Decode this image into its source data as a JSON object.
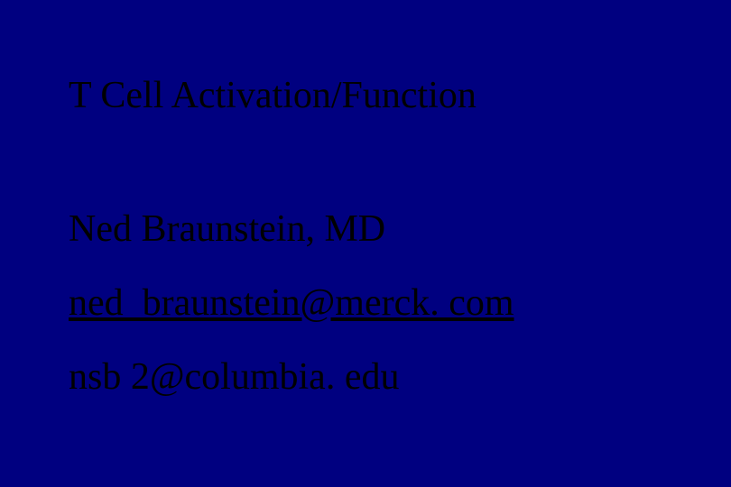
{
  "slide": {
    "background_color": "#000080",
    "text_color": "#000000",
    "font_family": "Times New Roman",
    "title": {
      "text": "T Cell Activation/Function",
      "fontsize": 42
    },
    "author": {
      "text": "Ned Braunstein,  MD",
      "fontsize": 42
    },
    "email1": {
      "text": "ned_braunstein@merck. com",
      "fontsize": 42,
      "underline": true
    },
    "email2": {
      "text": "nsb 2@columbia. edu",
      "fontsize": 42,
      "underline": false
    }
  }
}
